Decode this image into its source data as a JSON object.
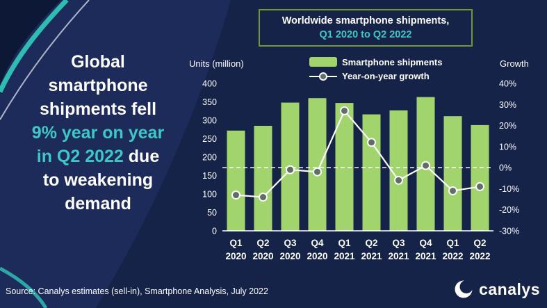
{
  "page": {
    "bg": "#152348",
    "accent": "#3fc8c3"
  },
  "headline": {
    "lines": [
      [
        {
          "text": "Global",
          "accent": false
        }
      ],
      [
        {
          "text": "smartphone",
          "accent": false
        }
      ],
      [
        {
          "text": "shipments fell",
          "accent": false
        }
      ],
      [
        {
          "text": "9% year on year",
          "accent": true
        }
      ],
      [
        {
          "text": "in Q2 2022",
          "accent": true
        },
        {
          "text": " due",
          "accent": false
        }
      ],
      [
        {
          "text": "to weakening",
          "accent": false
        }
      ],
      [
        {
          "text": "demand",
          "accent": false
        }
      ]
    ]
  },
  "title_box": {
    "line1": "Worldwide smartphone shipments,",
    "line2": "Q1 2020 to Q2 2022",
    "border_color": "#6f9a33"
  },
  "chart_data": {
    "type": "bar+line",
    "categories": [
      "Q1 2020",
      "Q2 2020",
      "Q3 2020",
      "Q4 2020",
      "Q1 2021",
      "Q2 2021",
      "Q3 2021",
      "Q4 2021",
      "Q1 2022",
      "Q2 2022"
    ],
    "series": [
      {
        "name": "Smartphone shipments",
        "type": "bar",
        "axis": "left",
        "values": [
          272,
          285,
          348,
          360,
          347,
          316,
          327,
          363,
          311,
          287
        ],
        "color": "#a2d46e"
      },
      {
        "name": "Year-on-year growth",
        "type": "line",
        "axis": "right",
        "values": [
          -13,
          -14,
          -1,
          -2,
          27,
          12,
          -6,
          1,
          -11,
          -9
        ],
        "color": "#ffffff"
      }
    ],
    "left_axis": {
      "label": "Units (million)",
      "min": 0,
      "max": 400,
      "step": 50,
      "suffix": ""
    },
    "right_axis": {
      "label": "Growth",
      "min": -30,
      "max": 40,
      "step": 10,
      "suffix": "%"
    },
    "marker_fill": "#5f6f68",
    "zero_growth_dashed": true,
    "grid": false,
    "legend_position": "top-center"
  },
  "footer": {
    "source": "Source: Canalys estimates (sell-in), Smartphone Analysis, July 2022",
    "brand": "canalys"
  }
}
